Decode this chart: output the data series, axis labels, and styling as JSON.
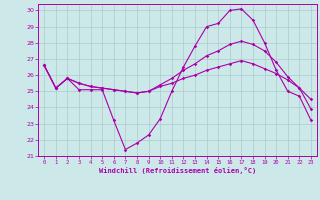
{
  "xlabel": "Windchill (Refroidissement éolien,°C)",
  "xlim": [
    -0.5,
    23.5
  ],
  "ylim": [
    21,
    30.4
  ],
  "yticks": [
    21,
    22,
    23,
    24,
    25,
    26,
    27,
    28,
    29,
    30
  ],
  "xticks": [
    0,
    1,
    2,
    3,
    4,
    5,
    6,
    7,
    8,
    9,
    10,
    11,
    12,
    13,
    14,
    15,
    16,
    17,
    18,
    19,
    20,
    21,
    22,
    23
  ],
  "background_color": "#cde8e8",
  "grid_color": "#aacccc",
  "line_color": "#aa00aa",
  "line1_y": [
    26.6,
    25.2,
    25.8,
    25.1,
    25.1,
    25.1,
    23.2,
    21.4,
    21.8,
    22.3,
    23.3,
    25.0,
    26.5,
    27.8,
    29.0,
    29.2,
    30.0,
    30.1,
    29.4,
    28.0,
    26.3,
    25.0,
    24.7,
    23.2
  ],
  "line2_y": [
    26.6,
    25.2,
    25.8,
    25.5,
    25.3,
    25.2,
    25.1,
    25.0,
    24.9,
    25.0,
    25.4,
    25.8,
    26.3,
    26.7,
    27.2,
    27.5,
    27.9,
    28.1,
    27.9,
    27.5,
    26.8,
    25.9,
    25.2,
    24.5
  ],
  "line3_y": [
    26.6,
    25.2,
    25.8,
    25.5,
    25.3,
    25.2,
    25.1,
    25.0,
    24.9,
    25.0,
    25.3,
    25.5,
    25.8,
    26.0,
    26.3,
    26.5,
    26.7,
    26.9,
    26.7,
    26.4,
    26.1,
    25.7,
    25.2,
    23.9
  ]
}
